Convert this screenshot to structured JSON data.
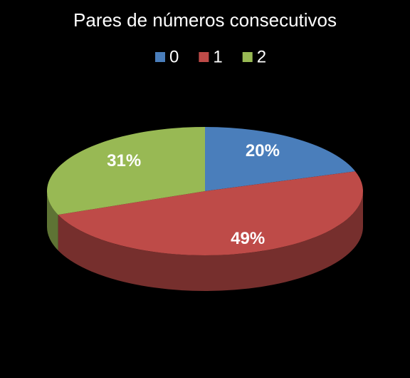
{
  "chart_data": {
    "type": "pie",
    "title": "Pares de números consecutivos",
    "categories": [
      "0",
      "1",
      "2"
    ],
    "values": [
      20,
      49,
      31
    ],
    "value_labels": [
      "20%",
      "49%",
      "31%"
    ],
    "colors": [
      "#4a7ebb",
      "#be4b48",
      "#98b954"
    ],
    "legend": "top"
  }
}
